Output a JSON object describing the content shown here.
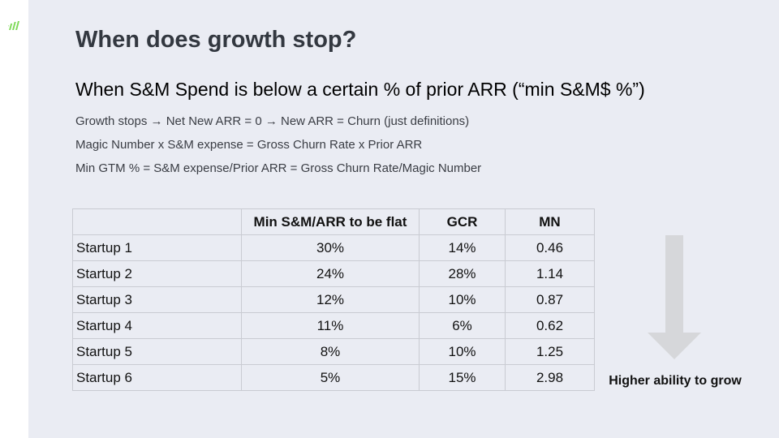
{
  "slide": {
    "title": "When does growth stop?",
    "subtitle": "When S&M Spend is below a certain % of prior ARR (“min S&M$ %”)",
    "lines": [
      "Growth stops → Net New ARR = 0 → New ARR = Churn (just definitions)",
      "Magic Number x S&M expense = Gross Churn Rate x Prior ARR",
      "Min GTM % = S&M expense/Prior ARR = Gross Churn Rate/Magic Number"
    ]
  },
  "table": {
    "headers": [
      "",
      "Min S&M/ARR to be flat",
      "GCR",
      "MN"
    ],
    "rows": [
      [
        "Startup 1",
        "30%",
        "14%",
        "0.46"
      ],
      [
        "Startup 2",
        "24%",
        "28%",
        "1.14"
      ],
      [
        "Startup 3",
        "12%",
        "10%",
        "0.87"
      ],
      [
        "Startup 4",
        "11%",
        "6%",
        "0.62"
      ],
      [
        "Startup 5",
        "8%",
        "10%",
        "1.25"
      ],
      [
        "Startup 6",
        "5%",
        "15%",
        "2.98"
      ]
    ]
  },
  "arrow": {
    "label": "Higher ability to grow",
    "icon": "down-arrow-icon",
    "color": "#d6d7da"
  },
  "colors": {
    "background": "#eaecf3",
    "logo": "#7ed957"
  }
}
